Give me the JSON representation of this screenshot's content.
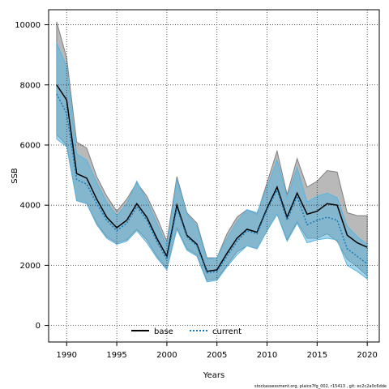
{
  "chart_data": {
    "type": "line",
    "xlabel": "Years",
    "ylabel": "SSB",
    "xlim": [
      1988.2,
      2021.2
    ],
    "ylim": [
      -550,
      10500
    ],
    "x_ticks": [
      1990,
      1995,
      2000,
      2005,
      2010,
      2015,
      2020
    ],
    "y_ticks": [
      0,
      2000,
      4000,
      6000,
      8000,
      10000
    ],
    "grid": true,
    "legend_position": "bottom-center",
    "x": [
      1989,
      1990,
      1991,
      1992,
      1993,
      1994,
      1995,
      1996,
      1997,
      1998,
      1999,
      2000,
      2001,
      2002,
      2003,
      2004,
      2005,
      2006,
      2007,
      2008,
      2009,
      2010,
      2011,
      2012,
      2013,
      2014,
      2015,
      2016,
      2017,
      2018,
      2019,
      2020
    ],
    "series": [
      {
        "name": "base",
        "color": "#000000",
        "dash": "solid",
        "band_color": "#808080",
        "values": [
          8000,
          7500,
          5050,
          4900,
          4200,
          3600,
          3250,
          3500,
          4050,
          3600,
          2900,
          2300,
          4000,
          3000,
          2700,
          1800,
          1850,
          2400,
          2900,
          3200,
          3100,
          3900,
          4600,
          3600,
          4400,
          3700,
          3800,
          4050,
          4000,
          3000,
          2750,
          2600
        ],
        "lower": [
          6350,
          6000,
          4150,
          4050,
          3400,
          2950,
          2750,
          2850,
          3200,
          2850,
          2300,
          1900,
          3250,
          2550,
          2350,
          1500,
          1550,
          2000,
          2450,
          2650,
          2550,
          3150,
          3700,
          2850,
          3450,
          2900,
          2900,
          3050,
          2800,
          2200,
          1950,
          1650
        ],
        "upper": [
          10100,
          8900,
          6100,
          5900,
          4950,
          4300,
          3800,
          4200,
          4750,
          4300,
          3600,
          2800,
          4950,
          3750,
          3400,
          2250,
          2250,
          3050,
          3600,
          3850,
          3700,
          4750,
          5800,
          4350,
          5550,
          4600,
          4800,
          5150,
          5100,
          3750,
          3650,
          3650
        ]
      },
      {
        "name": "current",
        "color": "#1a7bb9",
        "dash": "dotted",
        "band_color": "#5ab4e0",
        "values": [
          7700,
          7050,
          4850,
          4700,
          4050,
          3500,
          3150,
          3400,
          3950,
          3500,
          2800,
          2200,
          3900,
          2950,
          2650,
          1750,
          1800,
          2300,
          2800,
          3150,
          3050,
          3850,
          4500,
          3500,
          4300,
          3350,
          3500,
          3600,
          3500,
          2550,
          2300,
          2050
        ],
        "lower": [
          6200,
          5950,
          4150,
          4050,
          3350,
          2900,
          2700,
          2800,
          3150,
          2750,
          2250,
          1850,
          3200,
          2500,
          2300,
          1450,
          1500,
          1950,
          2350,
          2650,
          2550,
          3150,
          3700,
          2800,
          3400,
          2750,
          2850,
          2900,
          2850,
          2000,
          1800,
          1550
        ],
        "upper": [
          9400,
          8600,
          5700,
          5500,
          4750,
          4100,
          3650,
          4050,
          4800,
          4150,
          3400,
          2650,
          4850,
          3700,
          3300,
          2200,
          2250,
          2900,
          3450,
          3850,
          3750,
          4600,
          5500,
          4250,
          5250,
          4100,
          4300,
          4400,
          4250,
          3300,
          2950,
          2700
        ]
      }
    ],
    "footer": "stockassessment.org, plaice7fg_002, r15413 , git: ec2c2a0c6dde"
  }
}
